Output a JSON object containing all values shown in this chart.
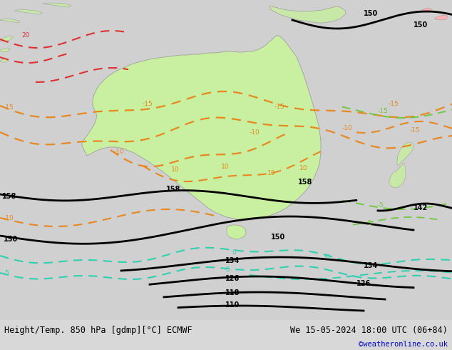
{
  "title_left": "Height/Temp. 850 hPa [gdmp][°C] ECMWF",
  "title_right": "We 15-05-2024 18:00 UTC (06+84)",
  "credit": "©weatheronline.co.uk",
  "ocean_color": "#d8d8d8",
  "land_color": "#c8c8c8",
  "aus_color": "#c8f0a0",
  "other_land_color": "#c8e8a8",
  "footer_bg": "#ffffff",
  "black": "#000000",
  "orange": "#e88820",
  "cyan": "#30d0b0",
  "red": "#e03030",
  "green": "#70c840",
  "blue_credit": "#0000cc"
}
